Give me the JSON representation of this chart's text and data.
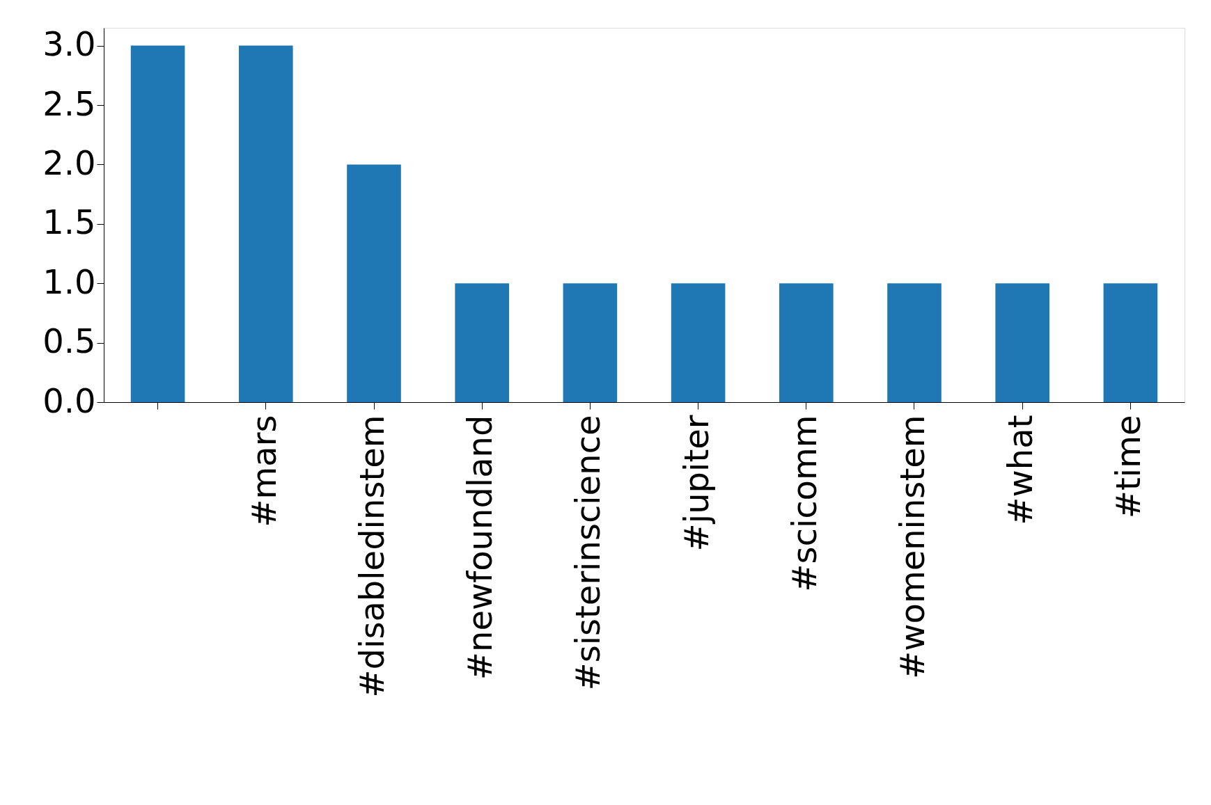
{
  "chart_data": {
    "type": "bar",
    "categories": [
      null,
      "#mars",
      "#disabledinstem",
      "#newfoundland",
      "#sisterinscience",
      "#jupiter",
      "#scicomm",
      "#womeninstem",
      "#what",
      "#time"
    ],
    "values": [
      3,
      3,
      2,
      1,
      1,
      1,
      1,
      1,
      1,
      1
    ],
    "color": "#1f77b4",
    "ylim": [
      0,
      3.15
    ],
    "yticks": [
      {
        "value": 0,
        "label": "0.0"
      },
      {
        "value": 0.5,
        "label": "0.5"
      },
      {
        "value": 1,
        "label": "1.0"
      },
      {
        "value": 1.5,
        "label": "1.5"
      },
      {
        "value": 2,
        "label": "2.0"
      },
      {
        "value": 2.5,
        "label": "2.5"
      },
      {
        "value": 3,
        "label": "3.0"
      }
    ],
    "grid": false
  }
}
